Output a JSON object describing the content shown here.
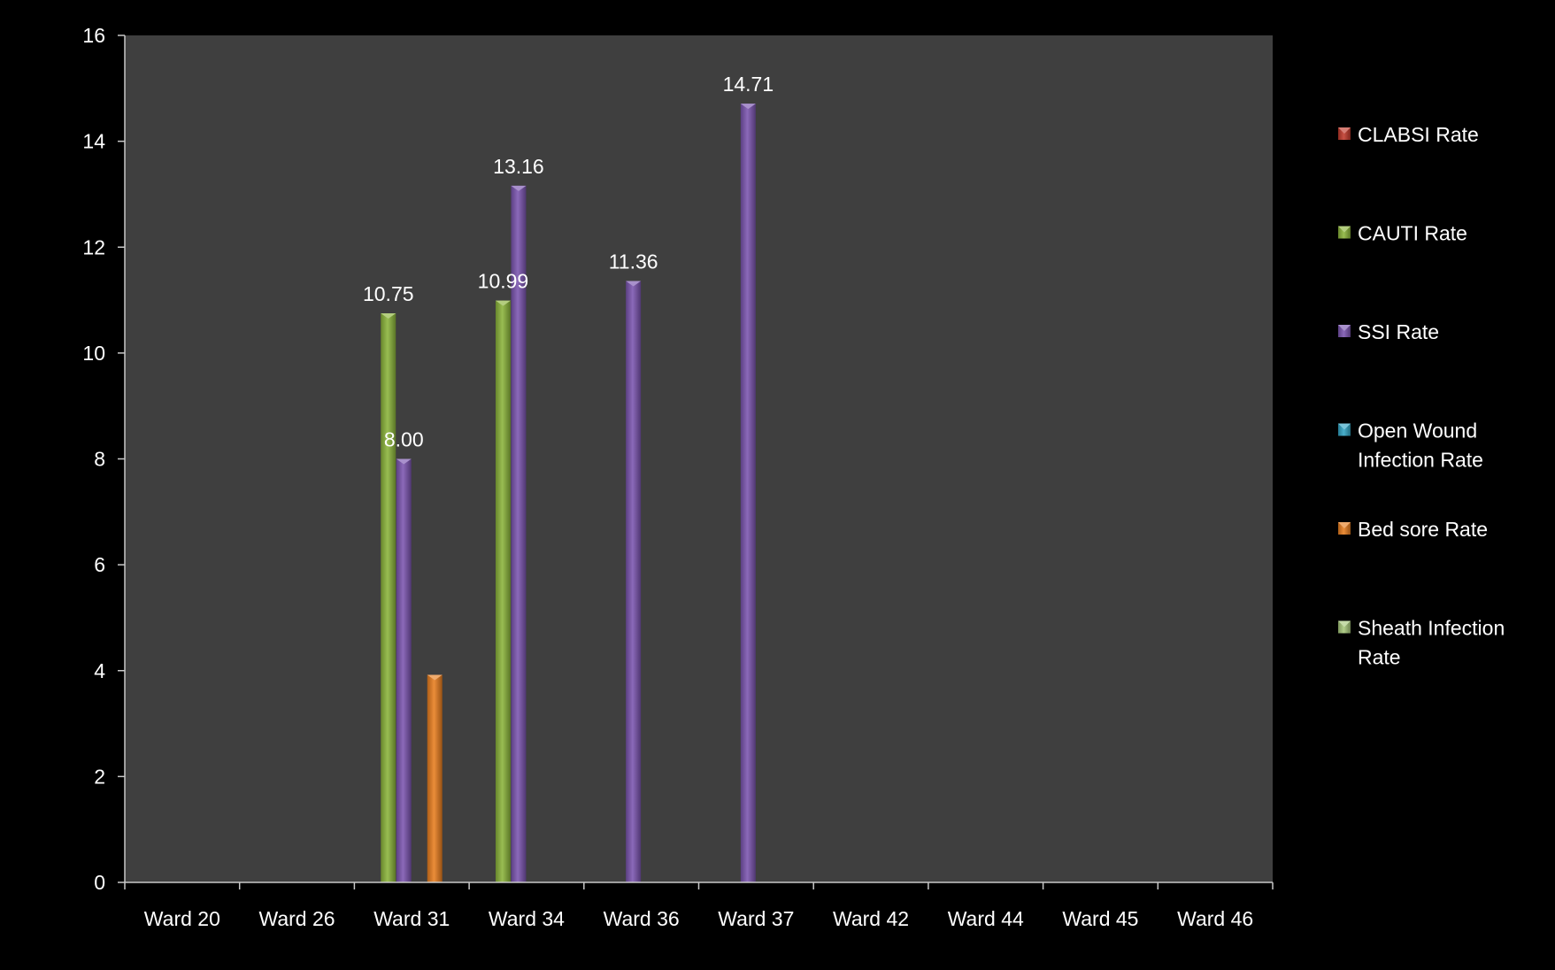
{
  "chart_data": {
    "type": "bar",
    "title": "",
    "xlabel": "",
    "ylabel": "",
    "ylim": [
      0,
      16
    ],
    "yticks": [
      "0",
      "2",
      "4",
      "6",
      "8",
      "10",
      "12",
      "14",
      "16"
    ],
    "grid": false,
    "legend_position": "right",
    "categories": [
      "Ward 20",
      "Ward 26",
      "Ward 31",
      "Ward 34",
      "Ward 36",
      "Ward 37",
      "Ward 42",
      "Ward 44",
      "Ward 45",
      "Ward 46"
    ],
    "series": [
      {
        "name": "CLABSI Rate",
        "color": "#c0392b",
        "values": [
          0,
          0,
          0,
          0,
          0,
          0,
          0,
          0,
          0,
          0
        ],
        "labels": [
          "",
          "",
          "",
          "",
          "",
          "",
          "",
          "",
          "",
          ""
        ]
      },
      {
        "name": "CAUTI Rate",
        "color": "#8bb43a",
        "values": [
          0,
          0,
          10.75,
          10.99,
          0,
          0,
          0,
          0,
          0,
          0
        ],
        "labels": [
          "",
          "",
          "10.75",
          "10.99",
          "",
          "",
          "",
          "",
          "",
          ""
        ]
      },
      {
        "name": "SSI Rate",
        "color": "#7b55b0",
        "values": [
          0,
          0,
          8.0,
          13.16,
          11.36,
          14.71,
          0,
          0,
          0,
          0
        ],
        "labels": [
          "",
          "",
          "8.00",
          "13.16",
          "11.36",
          "14.71",
          "",
          "",
          "",
          ""
        ]
      },
      {
        "name": "Open Wound Infection Rate",
        "color": "#31a4c4",
        "values": [
          0,
          0,
          0,
          0,
          0,
          0,
          0,
          0,
          0,
          0
        ],
        "labels": [
          "",
          "",
          "",
          "",
          "",
          "",
          "",
          "",
          "",
          ""
        ]
      },
      {
        "name": "Bed sore Rate",
        "color": "#e87d1e",
        "values": [
          0,
          0,
          3.92,
          0,
          0,
          0,
          0,
          0,
          0,
          0
        ],
        "labels": [
          "",
          "",
          "",
          "",
          "",
          "",
          "",
          "",
          "",
          ""
        ]
      },
      {
        "name": "Sheath Infection Rate",
        "color": "#a6c77a",
        "values": [
          0,
          0,
          0,
          0,
          0,
          0,
          0,
          0,
          0,
          0
        ],
        "labels": [
          "",
          "",
          "",
          "",
          "",
          "",
          "",
          "",
          "",
          ""
        ]
      }
    ]
  },
  "legend": {
    "items": [
      {
        "lines": [
          "CLABSI Rate"
        ]
      },
      {
        "lines": [
          "CAUTI Rate"
        ]
      },
      {
        "lines": [
          "SSI Rate"
        ]
      },
      {
        "lines": [
          "Open Wound",
          "Infection Rate"
        ]
      },
      {
        "lines": [
          "Bed sore Rate"
        ]
      },
      {
        "lines": [
          "Sheath Infection",
          "Rate"
        ]
      }
    ]
  },
  "colors": {
    "background": "#000000",
    "plot_area": "#3f3f3f",
    "axis": "#c8c8c8",
    "text": "#ffffff"
  }
}
